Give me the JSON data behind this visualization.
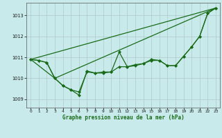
{
  "title": "Graphe pression niveau de la mer (hPa)",
  "bg_color": "#c8eaea",
  "grid_color": "#b0c8c8",
  "line_color": "#1a6b1a",
  "marker_color": "#1a6b1a",
  "xlim": [
    -0.5,
    23.5
  ],
  "ylim": [
    1008.6,
    1013.6
  ],
  "yticks": [
    1009,
    1010,
    1011,
    1012,
    1013
  ],
  "xticks": [
    0,
    1,
    2,
    3,
    4,
    5,
    6,
    7,
    8,
    9,
    10,
    11,
    12,
    13,
    14,
    15,
    16,
    17,
    18,
    19,
    20,
    21,
    22,
    23
  ],
  "x": [
    0,
    1,
    2,
    3,
    4,
    5,
    6,
    7,
    8,
    9,
    10,
    11,
    12,
    13,
    14,
    15,
    16,
    17,
    18,
    19,
    20,
    21,
    22,
    23
  ],
  "line1": [
    1010.9,
    1010.85,
    1010.75,
    1010.0,
    1009.65,
    1009.45,
    1009.2,
    1010.35,
    1010.25,
    1010.25,
    1010.3,
    1011.25,
    1010.55,
    1010.65,
    1010.7,
    1010.9,
    1010.85,
    1010.6,
    1010.6,
    1011.05,
    1011.5,
    1012.0,
    1013.1,
    1013.35
  ],
  "line2": [
    1010.9,
    1010.85,
    1010.75,
    1010.0,
    1009.65,
    1009.45,
    1009.35,
    1010.3,
    1010.25,
    1010.3,
    1010.3,
    1010.55,
    1010.55,
    1010.6,
    1010.7,
    1010.85,
    1010.85,
    1010.6,
    1010.6,
    1011.05,
    1011.5,
    1012.0,
    1013.1,
    1013.35
  ],
  "line3_x": [
    0,
    3,
    23
  ],
  "line3_y": [
    1010.9,
    1010.0,
    1013.35
  ],
  "line4_x": [
    0,
    23
  ],
  "line4_y": [
    1010.9,
    1013.35
  ]
}
